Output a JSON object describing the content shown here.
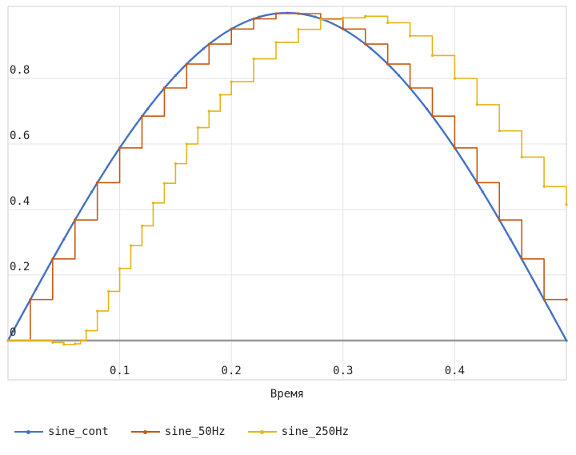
{
  "chart_data": {
    "type": "line",
    "xlabel": "Время",
    "ylabel": "",
    "xlim": [
      0,
      0.5
    ],
    "ylim": [
      -0.12,
      1.02
    ],
    "x_ticks": [
      {
        "value": 0.1,
        "label": "0.1"
      },
      {
        "value": 0.2,
        "label": "0.2"
      },
      {
        "value": 0.3,
        "label": "0.3"
      },
      {
        "value": 0.4,
        "label": "0.4"
      }
    ],
    "y_ticks": [
      {
        "value": 0,
        "label": "0"
      },
      {
        "value": 0.2,
        "label": "0.2"
      },
      {
        "value": 0.4,
        "label": "0.4"
      },
      {
        "value": 0.6,
        "label": "0.6"
      },
      {
        "value": 0.8,
        "label": "0.8"
      }
    ],
    "grid": true,
    "legend_position": "bottom",
    "series": [
      {
        "name": "sine_cont",
        "color": "#4472c4",
        "step": false,
        "x": [
          0,
          0.025,
          0.05,
          0.075,
          0.1,
          0.125,
          0.15,
          0.175,
          0.2,
          0.225,
          0.25,
          0.275,
          0.3,
          0.325,
          0.35,
          0.375,
          0.4,
          0.425,
          0.45,
          0.475,
          0.5
        ],
        "y": [
          0,
          0.156,
          0.309,
          0.454,
          0.588,
          0.707,
          0.809,
          0.891,
          0.951,
          0.988,
          1.0,
          0.988,
          0.951,
          0.891,
          0.809,
          0.707,
          0.588,
          0.454,
          0.309,
          0.156,
          0
        ]
      },
      {
        "name": "sine_50Hz",
        "color": "#c55a11",
        "step": true,
        "x": [
          0,
          0.02,
          0.04,
          0.06,
          0.08,
          0.1,
          0.12,
          0.14,
          0.16,
          0.18,
          0.2,
          0.22,
          0.24,
          0.26,
          0.28,
          0.3,
          0.32,
          0.34,
          0.36,
          0.38,
          0.4,
          0.42,
          0.44,
          0.46,
          0.48,
          0.5
        ],
        "y": [
          0,
          0.125,
          0.249,
          0.368,
          0.482,
          0.588,
          0.685,
          0.771,
          0.844,
          0.905,
          0.951,
          0.982,
          0.998,
          0.998,
          0.982,
          0.951,
          0.905,
          0.844,
          0.771,
          0.685,
          0.588,
          0.482,
          0.368,
          0.249,
          0.125,
          0.125
        ]
      },
      {
        "name": "sine_250Hz",
        "color": "#e5b417",
        "step": true,
        "x": [
          0,
          0.02,
          0.04,
          0.05,
          0.06,
          0.065,
          0.07,
          0.08,
          0.09,
          0.1,
          0.11,
          0.12,
          0.13,
          0.14,
          0.15,
          0.16,
          0.17,
          0.18,
          0.19,
          0.2,
          0.22,
          0.24,
          0.26,
          0.28,
          0.3,
          0.32,
          0.34,
          0.36,
          0.38,
          0.4,
          0.42,
          0.44,
          0.46,
          0.48,
          0.5
        ],
        "y": [
          0,
          0,
          -0.006,
          -0.012,
          -0.01,
          0.0,
          0.03,
          0.09,
          0.15,
          0.22,
          0.29,
          0.35,
          0.42,
          0.48,
          0.54,
          0.6,
          0.65,
          0.7,
          0.75,
          0.79,
          0.86,
          0.91,
          0.95,
          0.98,
          0.985,
          0.99,
          0.97,
          0.93,
          0.87,
          0.8,
          0.72,
          0.64,
          0.56,
          0.47,
          0.415
        ]
      }
    ]
  }
}
